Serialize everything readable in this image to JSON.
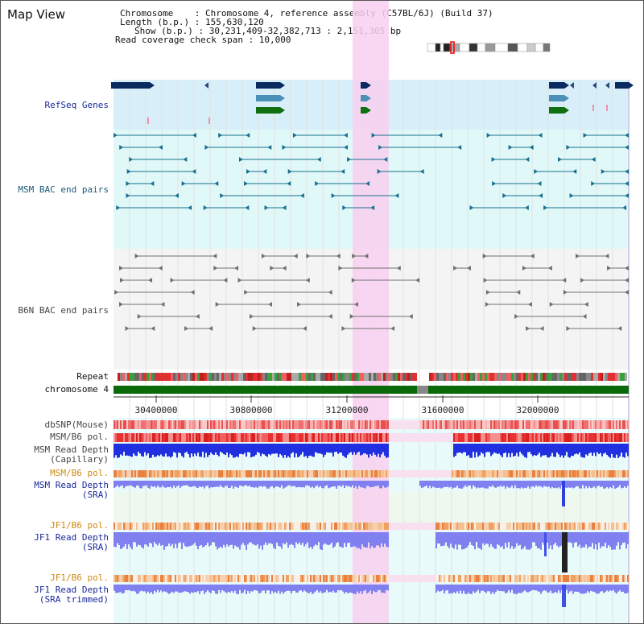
{
  "title": "Map View",
  "info": {
    "chromosome": "Chromosome    : Chromosome 4, reference assembly (C57BL/6J) (Build 37)",
    "length": "Length (b.p.) : 155,630,120",
    "show": "Show (b.p.) : 30,231,409-32,382,713 : 2,151,305 bp",
    "coverage": "Read coverage check span : 10,000"
  },
  "tracks": {
    "refseq": "RefSeq Genes",
    "msm_bac": "MSM BAC end pairs",
    "b6n_bac": "B6N BAC end pairs",
    "repeat": "Repeat",
    "chromosome": "chromosome 4",
    "dbsnp": "dbSNP(Mouse)",
    "msm_b6_pol_cap": "MSM/B6 pol.",
    "msm_depth_cap_1": "MSM Read Depth",
    "msm_depth_cap_2": "(Capillary)",
    "msm_b6_pol_sra": "MSM/B6 pol.",
    "msm_depth_sra_1": "MSM Read Depth",
    "msm_depth_sra_2": "(SRA)",
    "jf1_b6_pol_1": "JF1/B6 pol.",
    "jf1_depth_sra_1": "JF1 Read Depth",
    "jf1_depth_sra_2": "(SRA)",
    "jf1_b6_pol_2": "JF1/B6 pol.",
    "jf1_depth_trim_1": "JF1 Read Depth",
    "jf1_depth_trim_2": "(SRA trimmed)"
  },
  "ruler": {
    "ticks": [
      "30400000",
      "30800000",
      "31200000",
      "31600000",
      "32000000"
    ]
  },
  "colors": {
    "highlight": "#f8d0f0",
    "refseq_bg": "#d8eef8",
    "msm_bg": "#e0f8f8",
    "b6n_bg": "#f4f4f4",
    "chromosome": "#0a6a0a",
    "depth_blue": "#2030e0",
    "sra_blue": "#8080f0"
  }
}
